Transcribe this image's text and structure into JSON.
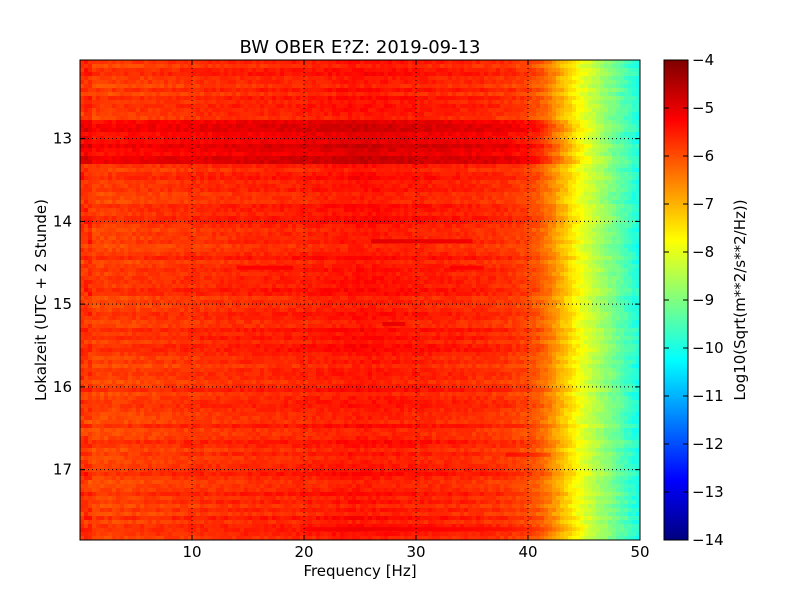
{
  "chart_data": {
    "type": "heatmap",
    "title": "BW OBER E?Z: 2019-09-13",
    "xlabel": "Frequency [Hz]",
    "ylabel": "Lokalzeit (UTC + 2 Stunde)",
    "colorbar_label": "Log10(Sqrt(m**2/s**2/Hz))",
    "xlim": [
      0,
      50
    ],
    "ylim": [
      12.05,
      17.85
    ],
    "y_inverted": true,
    "x_ticks": [
      10,
      20,
      30,
      40,
      50
    ],
    "x_tick_labels": [
      "10",
      "20",
      "30",
      "40",
      "50"
    ],
    "y_ticks": [
      13,
      14,
      15,
      16,
      17
    ],
    "y_tick_labels": [
      "13",
      "14",
      "15",
      "16",
      "17"
    ],
    "colorbar_range": [
      -14,
      -4
    ],
    "colorbar_ticks": [
      -4,
      -5,
      -6,
      -7,
      -8,
      -9,
      -10,
      -11,
      -12,
      -13,
      -14
    ],
    "colorbar_tick_labels": [
      "−4",
      "−5",
      "−6",
      "−7",
      "−8",
      "−9",
      "−10",
      "−11",
      "−12",
      "−13",
      "−14"
    ],
    "colormap": "jet",
    "grid": true,
    "profile_freq_hz": [
      0,
      5,
      10,
      15,
      20,
      25,
      30,
      35,
      38,
      40,
      41,
      42,
      43,
      44,
      45,
      46,
      47,
      48,
      49,
      50
    ],
    "profile_level": [
      -5.9,
      -5.8,
      -5.7,
      -5.6,
      -5.55,
      -5.4,
      -5.5,
      -5.6,
      -5.7,
      -5.9,
      -6.1,
      -6.5,
      -7.0,
      -7.5,
      -8.0,
      -8.4,
      -8.8,
      -9.2,
      -9.6,
      -10.0
    ],
    "bands": [
      {
        "time_start": 12.78,
        "time_end": 13.33,
        "offset": 0.55
      }
    ],
    "streaks": [
      {
        "time": 14.24,
        "freq_start": 26.0,
        "freq_end": 35.0,
        "offset": 0.45
      },
      {
        "time": 14.56,
        "freq_start": 14.0,
        "freq_end": 19.0,
        "offset": 0.35
      },
      {
        "time": 14.56,
        "freq_start": 33.0,
        "freq_end": 36.0,
        "offset": 0.35
      },
      {
        "time": 15.24,
        "freq_start": 27.0,
        "freq_end": 29.0,
        "offset": 0.4
      },
      {
        "time": 16.82,
        "freq_start": 38.0,
        "freq_end": 42.0,
        "offset": 0.35
      },
      {
        "time": 17.72,
        "freq_start": 20.0,
        "freq_end": 45.0,
        "offset": 0.3
      }
    ]
  }
}
